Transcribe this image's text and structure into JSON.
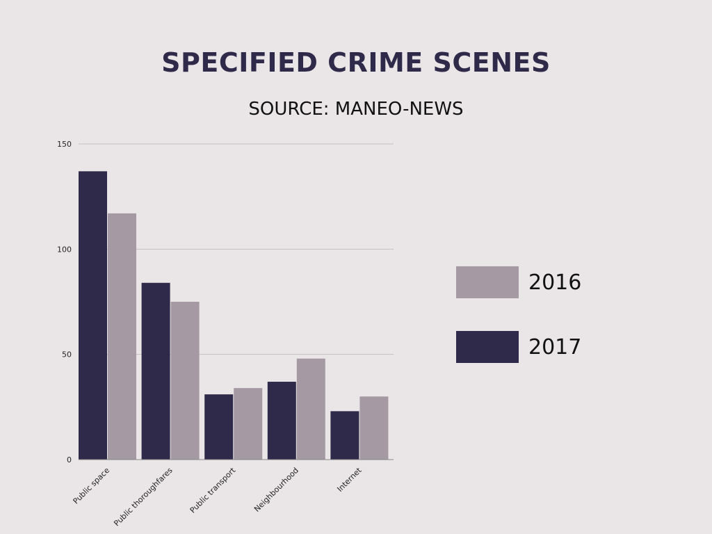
{
  "chart_data": {
    "type": "bar",
    "title": "SPECIFIED CRIME SCENES",
    "subtitle": "SOURCE: MANEO-NEWS",
    "xlabel": "",
    "ylabel": "",
    "categories": [
      "Public space",
      "Public thoroughfares",
      "Public transport",
      "Neighbourhood",
      "Internet"
    ],
    "series": [
      {
        "name": "2017",
        "color": "#302a4a",
        "values": [
          137,
          84,
          31,
          37,
          23
        ]
      },
      {
        "name": "2016",
        "color": "#a59aa4",
        "values": [
          117,
          75,
          34,
          48,
          30
        ]
      }
    ],
    "ylim": [
      0,
      150
    ],
    "yticks": [
      "0",
      "50",
      "100",
      "150"
    ],
    "grid": true,
    "legend_position": "right",
    "legend_order": [
      "2016",
      "2017"
    ]
  }
}
